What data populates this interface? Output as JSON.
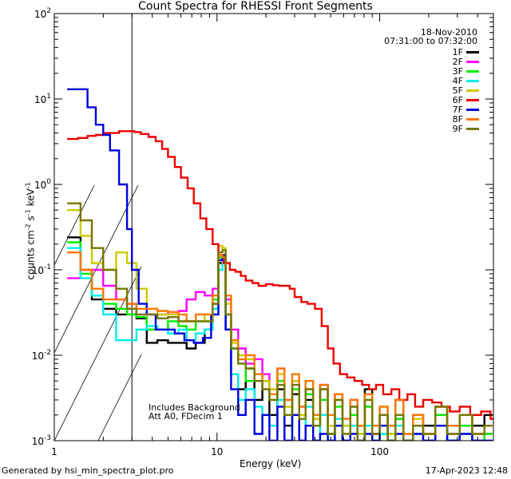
{
  "chart_data": {
    "type": "line",
    "title": "Count Spectra for RHESSI Front Segments",
    "xlabel": "Energy (keV)",
    "ylabel_parts": {
      "main": "counts cm",
      "e1": "-2",
      "s": " s",
      "e2": "-1",
      "k": " keV",
      "e3": "-1"
    },
    "xscale": "log",
    "yscale": "log",
    "xlim": [
      1,
      500
    ],
    "ylim": [
      0.001,
      100
    ],
    "x_ticks": [
      {
        "v": 1,
        "label": "1"
      },
      {
        "v": 10,
        "label": "10"
      },
      {
        "v": 100,
        "label": "100"
      }
    ],
    "y_ticks": [
      {
        "v": 0.001,
        "b": "10",
        "e": "-3"
      },
      {
        "v": 0.01,
        "b": "10",
        "e": "-2"
      },
      {
        "v": 0.1,
        "b": "10",
        "e": "-1"
      },
      {
        "v": 1,
        "b": "10",
        "e": "0"
      },
      {
        "v": 10,
        "b": "10",
        "e": "1"
      },
      {
        "v": 100,
        "b": "10",
        "e": "2"
      }
    ],
    "hatch_region_keV": [
      1,
      3
    ],
    "date": "18-Nov-2010",
    "time_range": "07:31:00 to 07:32:00",
    "annotations": [
      "Includes Background",
      "Att A0, FDecim 1"
    ],
    "series": [
      {
        "name": "1F",
        "color": "#000000",
        "x": [
          1.2,
          1.45,
          1.7,
          2.0,
          2.4,
          2.8,
          3.2,
          3.7,
          4.3,
          5.0,
          5.8,
          6.5,
          7.4,
          8.4,
          9.4,
          10.2,
          10.8,
          11.3,
          12.2,
          13.5,
          15,
          17,
          19,
          21,
          23.5,
          26,
          29,
          32,
          35,
          39,
          43,
          48,
          53,
          59,
          66,
          73,
          81,
          90,
          100,
          112,
          125,
          140,
          160,
          185,
          220,
          260,
          310,
          370,
          440
        ],
        "y": [
          0.24,
          0.1,
          0.045,
          0.035,
          0.03,
          0.03,
          0.027,
          0.014,
          0.015,
          0.014,
          0.014,
          0.012,
          0.014,
          0.02,
          0.04,
          0.12,
          0.14,
          0.02,
          0.006,
          0.004,
          0.007,
          0.003,
          0.005,
          0.002,
          0.004,
          0.0015,
          0.0035,
          0.001,
          0.003,
          0.0015,
          0.004,
          0.0012,
          0.003,
          0.001,
          0.0025,
          0.0015,
          0.004,
          0.0012,
          0.002,
          0.0015,
          0.003,
          0.001,
          0.002,
          0.0015,
          0.0025,
          0.001,
          0.002,
          0.0015,
          0.002
        ]
      },
      {
        "name": "2F",
        "color": "#ff00ff",
        "x": [
          1.2,
          1.45,
          1.7,
          2.0,
          2.4,
          2.8,
          3.2,
          3.7,
          4.3,
          5.0,
          5.8,
          6.5,
          7.4,
          8.4,
          9.4,
          10.2,
          10.8,
          11.3,
          12.2,
          13.5,
          15,
          17,
          19,
          21,
          23.5,
          26,
          29,
          32,
          35,
          39,
          43,
          48,
          53,
          59,
          66,
          73,
          81,
          90,
          100,
          112,
          125,
          140,
          160,
          185,
          220,
          260,
          310,
          370,
          440
        ],
        "y": [
          0.08,
          0.1,
          0.1,
          0.065,
          0.045,
          0.04,
          0.03,
          0.03,
          0.03,
          0.032,
          0.033,
          0.045,
          0.055,
          0.05,
          0.06,
          0.13,
          0.12,
          0.045,
          0.02,
          0.012,
          0.008,
          0.009,
          0.006,
          0.004,
          0.007,
          0.003,
          0.005,
          0.0025,
          0.004,
          0.002,
          0.0045,
          0.0015,
          0.0035,
          0.0015,
          0.003,
          0.001,
          0.0025,
          0.0012,
          0.002,
          0.001,
          0.0018,
          0.001,
          0.0015,
          0.001,
          0.002,
          0.0012,
          0.0015,
          0.001,
          0.0012
        ]
      },
      {
        "name": "3F",
        "color": "#00ee00",
        "x": [
          1.2,
          1.45,
          1.7,
          2.0,
          2.4,
          2.8,
          3.2,
          3.7,
          4.3,
          5.0,
          5.8,
          6.5,
          7.4,
          8.4,
          9.4,
          10.2,
          10.8,
          11.3,
          12.2,
          13.5,
          15,
          17,
          19,
          21,
          23.5,
          26,
          29,
          32,
          35,
          39,
          43,
          48,
          53,
          59,
          66,
          73,
          81,
          90,
          100,
          112,
          125,
          140,
          160,
          185,
          220,
          260,
          310,
          370,
          440
        ],
        "y": [
          0.21,
          0.09,
          0.05,
          0.04,
          0.035,
          0.03,
          0.028,
          0.02,
          0.02,
          0.025,
          0.022,
          0.02,
          0.025,
          0.025,
          0.045,
          0.14,
          0.15,
          0.03,
          0.012,
          0.008,
          0.005,
          0.006,
          0.004,
          0.003,
          0.005,
          0.002,
          0.004,
          0.0018,
          0.0035,
          0.0015,
          0.003,
          0.0012,
          0.0025,
          0.0015,
          0.002,
          0.0012,
          0.0025,
          0.001,
          0.002,
          0.0012,
          0.0018,
          0.001,
          0.0015,
          0.0012,
          0.002,
          0.001,
          0.0015,
          0.001,
          0.0012
        ]
      },
      {
        "name": "4F",
        "color": "#00eeee",
        "x": [
          1.2,
          1.45,
          1.7,
          2.0,
          2.4,
          2.8,
          3.2,
          3.7,
          4.3,
          5.0,
          5.8,
          6.5,
          7.4,
          8.4,
          9.4,
          10.2,
          10.8,
          11.3,
          12.2,
          13.5,
          15,
          17,
          19,
          21,
          23.5,
          26,
          29,
          32,
          35,
          39,
          43,
          48,
          53,
          59,
          66,
          73,
          81,
          90,
          100,
          112,
          125,
          140,
          160,
          185,
          220,
          260,
          310,
          370,
          440
        ],
        "y": [
          0.18,
          0.08,
          0.05,
          0.03,
          0.015,
          0.015,
          0.02,
          0.022,
          0.02,
          0.018,
          0.02,
          0.015,
          0.018,
          0.02,
          0.035,
          0.1,
          0.12,
          0.02,
          0.006,
          0.003,
          0.004,
          0.0025,
          0.002,
          0.0015,
          0.003,
          0.001,
          0.002,
          0.001,
          0.0025,
          0.001,
          0.002,
          0.001,
          0.0018,
          0.001,
          0.0015,
          0.001,
          0.0015,
          0.001,
          0.0012,
          0.001,
          0.0015,
          0.001,
          0.0012,
          0.001,
          0.0015,
          0.001,
          0.0012,
          0.001,
          0.001
        ]
      },
      {
        "name": "5F",
        "color": "#cccc00",
        "x": [
          1.2,
          1.45,
          1.7,
          2.0,
          2.4,
          2.8,
          3.2,
          3.7,
          4.3,
          5.0,
          5.8,
          6.5,
          7.4,
          8.4,
          9.4,
          10.2,
          10.8,
          11.3,
          12.2,
          13.5,
          15,
          17,
          19,
          21,
          23.5,
          26,
          29,
          32,
          35,
          39,
          43,
          48,
          53,
          59,
          66,
          73,
          81,
          90,
          100,
          112,
          125,
          140,
          160,
          185,
          220,
          260,
          310,
          370,
          440
        ],
        "y": [
          0.5,
          0.25,
          0.12,
          0.1,
          0.16,
          0.12,
          0.06,
          0.035,
          0.03,
          0.03,
          0.025,
          0.025,
          0.025,
          0.03,
          0.05,
          0.19,
          0.18,
          0.04,
          0.014,
          0.01,
          0.009,
          0.006,
          0.005,
          0.004,
          0.006,
          0.0025,
          0.005,
          0.002,
          0.004,
          0.0018,
          0.004,
          0.0015,
          0.003,
          0.0015,
          0.0025,
          0.0012,
          0.003,
          0.0015,
          0.0025,
          0.0012,
          0.002,
          0.0012,
          0.0018,
          0.0012,
          0.0025,
          0.0015,
          0.002,
          0.0012,
          0.0015
        ]
      },
      {
        "name": "6F",
        "color": "#ee0000",
        "x": [
          1.2,
          1.4,
          1.6,
          1.8,
          2.0,
          2.2,
          2.5,
          2.8,
          3.1,
          3.4,
          3.8,
          4.2,
          4.6,
          5.0,
          5.5,
          6.0,
          6.6,
          7.2,
          7.9,
          8.6,
          9.4,
          10.2,
          11,
          12,
          13,
          14,
          15,
          16.5,
          18,
          20,
          22,
          24,
          26,
          28,
          30,
          33,
          36,
          40,
          44,
          48,
          52,
          57,
          63,
          70,
          78,
          86,
          95,
          105,
          118,
          132,
          148,
          165,
          185,
          210,
          240,
          270,
          310,
          360,
          420,
          480
        ],
        "y": [
          3.4,
          3.5,
          3.7,
          3.8,
          4.0,
          4.0,
          4.2,
          4.2,
          4.1,
          3.9,
          3.6,
          3.2,
          2.6,
          2.1,
          1.6,
          1.2,
          0.9,
          0.6,
          0.4,
          0.3,
          0.2,
          0.15,
          0.12,
          0.1,
          0.095,
          0.085,
          0.075,
          0.07,
          0.065,
          0.068,
          0.066,
          0.065,
          0.065,
          0.06,
          0.048,
          0.042,
          0.04,
          0.035,
          0.022,
          0.012,
          0.008,
          0.006,
          0.0055,
          0.005,
          0.0045,
          0.004,
          0.0045,
          0.0035,
          0.004,
          0.003,
          0.0035,
          0.0025,
          0.003,
          0.0028,
          0.0025,
          0.0022,
          0.0025,
          0.002,
          0.0022,
          0.0018
        ]
      },
      {
        "name": "7F",
        "color": "#0000dd",
        "x": [
          1.2,
          1.4,
          1.6,
          1.8,
          2.0,
          2.2,
          2.5,
          2.8,
          3.0,
          3.3,
          3.7,
          4.2,
          4.8,
          5.5,
          6.3,
          7.2,
          8.2,
          9.2,
          10.2,
          10.8,
          11.3,
          12.2,
          13.5,
          15,
          17,
          19,
          21,
          23.5,
          26,
          29,
          32,
          35,
          39,
          43,
          48,
          53,
          59,
          66,
          73,
          81,
          90,
          100,
          112,
          125,
          140,
          160,
          185,
          220,
          260,
          310,
          370,
          440
        ],
        "y": [
          13,
          13,
          8,
          5,
          3.8,
          2.5,
          1.0,
          0.3,
          0.1,
          0.04,
          0.03,
          0.02,
          0.02,
          0.018,
          0.015,
          0.014,
          0.016,
          0.03,
          0.13,
          0.15,
          0.02,
          0.004,
          0.002,
          0.003,
          0.0012,
          0.002,
          0.001,
          0.0025,
          0.001,
          0.002,
          0.001,
          0.0015,
          0.001,
          0.0012,
          0.001,
          0.0015,
          0.001,
          0.0012,
          0.001,
          0.0012,
          0.001,
          0.0015,
          0.001,
          0.0012,
          0.001,
          0.0012,
          0.001,
          0.0015,
          0.001,
          0.0012,
          0.001,
          0.001
        ]
      },
      {
        "name": "8F",
        "color": "#ff7700",
        "x": [
          1.2,
          1.45,
          1.7,
          2.0,
          2.4,
          2.8,
          3.2,
          3.7,
          4.3,
          5.0,
          5.8,
          6.5,
          7.4,
          8.4,
          9.4,
          10.2,
          10.8,
          11.3,
          12.2,
          13.5,
          15,
          17,
          19,
          21,
          23.5,
          26,
          29,
          32,
          35,
          39,
          43,
          48,
          53,
          59,
          66,
          73,
          81,
          90,
          100,
          112,
          125,
          140,
          160,
          185,
          220,
          260,
          310,
          370,
          440
        ],
        "y": [
          0.16,
          0.1,
          0.06,
          0.045,
          0.045,
          0.04,
          0.035,
          0.035,
          0.033,
          0.032,
          0.03,
          0.025,
          0.03,
          0.03,
          0.05,
          0.15,
          0.14,
          0.05,
          0.015,
          0.009,
          0.01,
          0.006,
          0.004,
          0.0035,
          0.007,
          0.003,
          0.006,
          0.0025,
          0.005,
          0.002,
          0.0045,
          0.002,
          0.0035,
          0.0018,
          0.003,
          0.0015,
          0.0035,
          0.0015,
          0.0025,
          0.0015,
          0.003,
          0.0012,
          0.002,
          0.0012,
          0.0025,
          0.0015,
          0.002,
          0.0012,
          0.0015
        ]
      },
      {
        "name": "9F",
        "color": "#777700",
        "x": [
          1.2,
          1.45,
          1.7,
          2.0,
          2.4,
          2.8,
          3.2,
          3.7,
          4.3,
          5.0,
          5.8,
          6.5,
          7.4,
          8.4,
          9.4,
          10.2,
          10.8,
          11.3,
          12.2,
          13.5,
          15,
          17,
          19,
          21,
          23.5,
          26,
          29,
          32,
          35,
          39,
          43,
          48,
          53,
          59,
          66,
          73,
          81,
          90,
          100,
          112,
          125,
          140,
          160,
          185,
          220,
          260,
          310,
          370,
          440
        ],
        "y": [
          0.6,
          0.38,
          0.18,
          0.1,
          0.06,
          0.035,
          0.03,
          0.03,
          0.027,
          0.028,
          0.025,
          0.025,
          0.025,
          0.025,
          0.04,
          0.16,
          0.17,
          0.03,
          0.012,
          0.008,
          0.007,
          0.005,
          0.004,
          0.003,
          0.0045,
          0.002,
          0.0045,
          0.0018,
          0.004,
          0.0015,
          0.004,
          0.0012,
          0.003,
          0.0012,
          0.0025,
          0.001,
          0.003,
          0.0012,
          0.002,
          0.001,
          0.002,
          0.001,
          0.0015,
          0.0012,
          0.0025,
          0.0012,
          0.002,
          0.0012,
          0.0015
        ]
      }
    ]
  },
  "footer": {
    "left": "Generated by hsi_min_spectra_plot.pro",
    "right": "17-Apr-2023 12:48"
  }
}
